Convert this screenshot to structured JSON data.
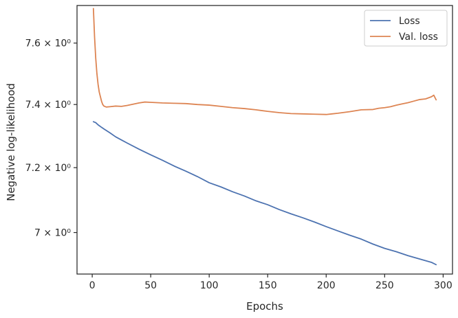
{
  "chart_data": {
    "type": "line",
    "title": "",
    "xlabel": "Epochs",
    "ylabel": "Negative log-likelihood",
    "xlim": [
      -13,
      308
    ],
    "ylim": [
      6.875,
      7.725
    ],
    "yscale": "log",
    "grid": false,
    "legend_position": "top-right",
    "x_ticks": [
      0,
      50,
      100,
      150,
      200,
      250,
      300
    ],
    "x_tick_labels": [
      "0",
      "50",
      "100",
      "150",
      "200",
      "250",
      "300"
    ],
    "y_ticks": [
      7.0,
      7.2,
      7.4,
      7.6
    ],
    "y_tick_labels": [
      "7 × 10⁰",
      "7.2 × 10⁰",
      "7.4 × 10⁰",
      "7.6 × 10⁰"
    ],
    "series": [
      {
        "name": "Loss",
        "color": "#4c72b0",
        "x": [
          1,
          3,
          5,
          8,
          10,
          15,
          20,
          25,
          30,
          40,
          50,
          60,
          70,
          80,
          90,
          100,
          110,
          120,
          130,
          140,
          150,
          160,
          170,
          180,
          190,
          200,
          210,
          220,
          230,
          240,
          250,
          260,
          270,
          280,
          290,
          294
        ],
        "y": [
          7.345,
          7.342,
          7.335,
          7.327,
          7.322,
          7.31,
          7.297,
          7.287,
          7.277,
          7.258,
          7.24,
          7.223,
          7.205,
          7.189,
          7.172,
          7.153,
          7.14,
          7.125,
          7.112,
          7.097,
          7.085,
          7.07,
          7.057,
          7.045,
          7.032,
          7.018,
          7.005,
          6.992,
          6.98,
          6.965,
          6.952,
          6.942,
          6.93,
          6.92,
          6.91,
          6.903
        ]
      },
      {
        "name": "Val. loss",
        "color": "#dd8452",
        "x": [
          1,
          2,
          3,
          4,
          5,
          6,
          7,
          8,
          9,
          10,
          12,
          15,
          20,
          25,
          30,
          40,
          45,
          50,
          60,
          70,
          80,
          90,
          100,
          110,
          120,
          130,
          140,
          150,
          160,
          170,
          180,
          190,
          200,
          205,
          210,
          220,
          225,
          230,
          240,
          245,
          250,
          255,
          260,
          265,
          270,
          275,
          280,
          285,
          290,
          292,
          294
        ],
        "y": [
          7.715,
          7.62,
          7.55,
          7.5,
          7.465,
          7.44,
          7.425,
          7.41,
          7.4,
          7.395,
          7.392,
          7.393,
          7.395,
          7.394,
          7.397,
          7.405,
          7.408,
          7.407,
          7.405,
          7.404,
          7.403,
          7.4,
          7.398,
          7.394,
          7.39,
          7.387,
          7.383,
          7.378,
          7.374,
          7.371,
          7.37,
          7.369,
          7.368,
          7.37,
          7.372,
          7.377,
          7.38,
          7.383,
          7.384,
          7.388,
          7.39,
          7.393,
          7.398,
          7.402,
          7.406,
          7.411,
          7.416,
          7.418,
          7.425,
          7.43,
          7.415
        ]
      }
    ]
  }
}
